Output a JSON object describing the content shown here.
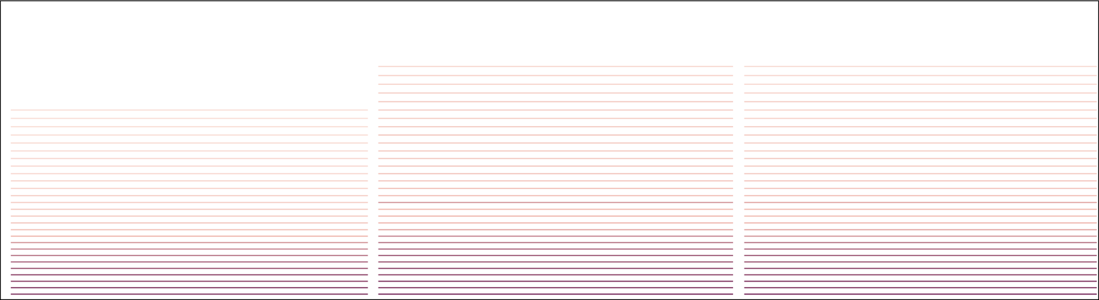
{
  "chart_data": [
    {
      "type": "spectrogram",
      "tick_labels": false,
      "color": "#6b1f55",
      "xlim": [
        0,
        100
      ],
      "ylim": [
        0,
        100
      ],
      "zlim": [
        0,
        1
      ],
      "y": [
        1.0,
        3.2,
        5.4,
        7.6,
        9.8,
        12.0,
        14.2,
        16.4,
        18.6,
        20.8,
        23.0,
        25.3,
        27.6,
        29.9,
        32.2,
        34.6,
        37.0,
        39.5,
        42.0,
        44.6,
        47.2,
        49.8,
        52.5,
        55.2,
        58.0,
        60.8,
        63.6
      ],
      "intensity": [
        0.9,
        0.9,
        0.85,
        0.85,
        0.8,
        0.75,
        0.7,
        0.65,
        0.6,
        0.5,
        0.4,
        0.35,
        0.3,
        0.3,
        0.25,
        0.25,
        0.2,
        0.2,
        0.15,
        0.15,
        0.15,
        0.12,
        0.12,
        0.1,
        0.1,
        0.08,
        0.08
      ]
    },
    {
      "type": "spectrogram",
      "tick_labels": false,
      "color": "#6b1f55",
      "xlim": [
        0,
        100
      ],
      "ylim": [
        0,
        100
      ],
      "zlim": [
        0,
        1
      ],
      "y": [
        1.0,
        3.2,
        5.4,
        7.6,
        9.8,
        12.0,
        14.2,
        16.4,
        18.6,
        20.8,
        23.0,
        25.3,
        27.6,
        29.9,
        32.2,
        34.6,
        37.0,
        39.5,
        42.0,
        44.6,
        47.2,
        49.8,
        52.5,
        55.2,
        58.0,
        60.8,
        63.6,
        66.5,
        69.4,
        72.4,
        75.4,
        78.5
      ],
      "intensity": [
        0.95,
        0.9,
        0.9,
        0.85,
        0.85,
        0.8,
        0.8,
        0.75,
        0.7,
        0.65,
        0.55,
        0.5,
        0.5,
        0.45,
        0.6,
        0.4,
        0.4,
        0.35,
        0.35,
        0.35,
        0.3,
        0.3,
        0.3,
        0.35,
        0.3,
        0.25,
        0.25,
        0.3,
        0.25,
        0.2,
        0.2,
        0.15
      ]
    },
    {
      "type": "spectrogram",
      "tick_labels": false,
      "color": "#6b1f55",
      "xlim": [
        0,
        100
      ],
      "ylim": [
        0,
        100
      ],
      "zlim": [
        0,
        1
      ],
      "y": [
        1.0,
        3.2,
        5.4,
        7.6,
        9.8,
        12.0,
        14.2,
        16.4,
        18.6,
        20.8,
        23.0,
        25.3,
        27.6,
        29.9,
        32.2,
        34.6,
        37.0,
        39.5,
        42.0,
        44.6,
        47.2,
        49.8,
        52.5,
        55.2,
        58.0,
        60.8,
        63.6,
        66.5,
        69.4,
        72.4,
        75.4,
        78.5
      ],
      "intensity": [
        0.95,
        0.9,
        0.9,
        0.85,
        0.85,
        0.8,
        0.8,
        0.75,
        0.7,
        0.6,
        0.55,
        0.5,
        0.45,
        0.45,
        0.55,
        0.4,
        0.35,
        0.35,
        0.3,
        0.3,
        0.3,
        0.25,
        0.25,
        0.3,
        0.25,
        0.2,
        0.2,
        0.25,
        0.2,
        0.15,
        0.15,
        0.12
      ]
    }
  ]
}
